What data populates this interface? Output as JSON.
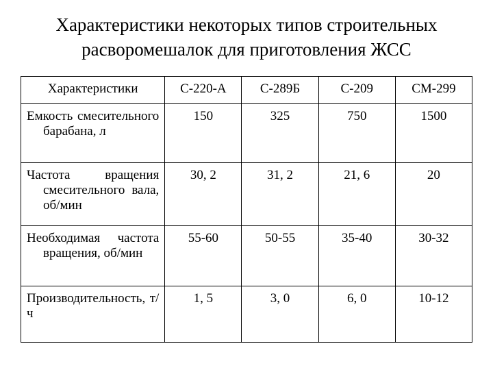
{
  "title": "Характеристики некоторых типов строительных расворомешалок для приготовления ЖСС",
  "table": {
    "header_first": "Характеристики",
    "columns": [
      "С-220-А",
      "С-289Б",
      "С-209",
      "СМ-299"
    ],
    "rows": [
      {
        "label_line1": "Емкость смесительного",
        "label_line2": "барабана, л",
        "values": [
          "150",
          "325",
          "750",
          "1500"
        ]
      },
      {
        "label_line1": "Частота вращения",
        "label_line2": "смесительного вала,",
        "label_line3": "об/мин",
        "values": [
          "30, 2",
          "31, 2",
          "21, 6",
          "20"
        ]
      },
      {
        "label_line1": "Необходимая частота",
        "label_line2": "вращения, об/мин",
        "values": [
          "55-60",
          "50-55",
          "35-40",
          "30-32"
        ]
      },
      {
        "label_line1": "Производительность, т/ч",
        "values": [
          "1, 5",
          "3, 0",
          "6, 0",
          "10-12"
        ]
      }
    ]
  },
  "style": {
    "background_color": "#ffffff",
    "text_color": "#000000",
    "border_color": "#000000",
    "font_family": "Times New Roman",
    "title_fontsize": 27,
    "cell_fontsize": 19
  }
}
